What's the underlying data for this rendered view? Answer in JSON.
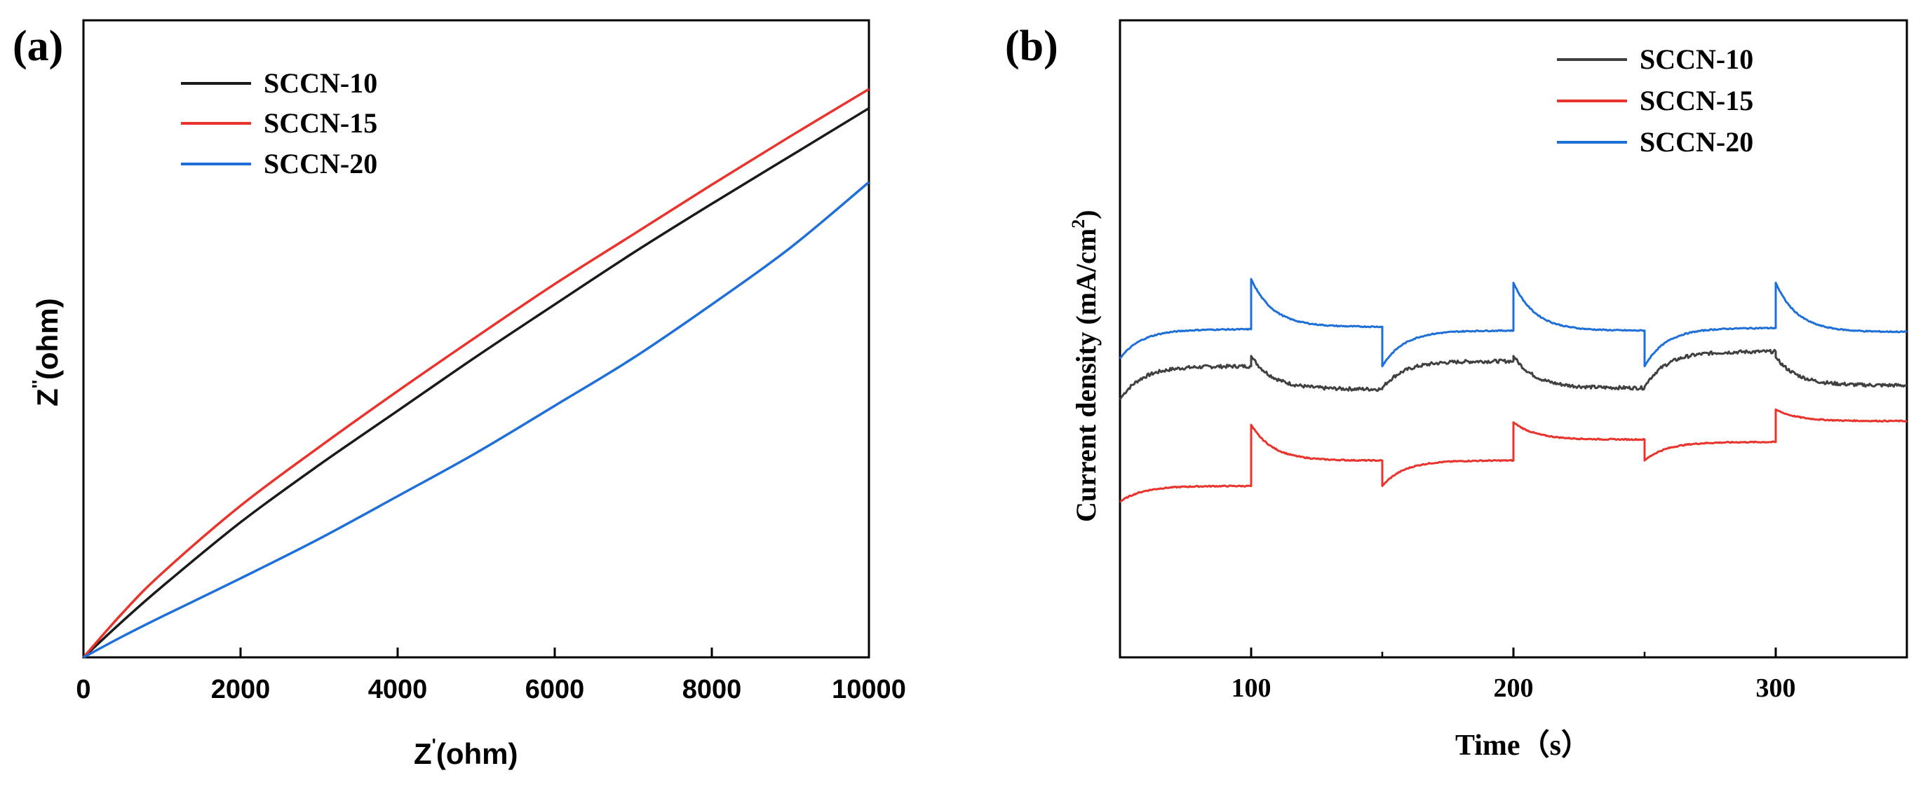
{
  "chart_data": [
    {
      "panel_label": "(a)",
      "type": "line",
      "xlabel_main": "Z",
      "xlabel_sup": "'",
      "xlabel_unit": "(ohm)",
      "ylabel_main": "Z",
      "ylabel_sup": "''",
      "ylabel_unit": "(ohm)",
      "xlim": [
        0,
        10000
      ],
      "ylim": [
        0,
        10000
      ],
      "xticks": [
        0,
        2000,
        4000,
        6000,
        8000,
        10000
      ],
      "xtick_labels": [
        "0",
        "2000",
        "4000",
        "6000",
        "8000",
        "10000"
      ],
      "legend_position": "top-left",
      "series": [
        {
          "name": "SCCN-10",
          "color": "#1a1a1a",
          "x": [
            0,
            500,
            1000,
            2000,
            3000,
            4000,
            5000,
            6000,
            7000,
            8000,
            9000,
            10000
          ],
          "y": [
            0,
            570,
            1110,
            2120,
            3020,
            3870,
            4720,
            5540,
            6350,
            7120,
            7870,
            8620
          ]
        },
        {
          "name": "SCCN-15",
          "color": "#e8342c",
          "x": [
            0,
            500,
            1000,
            2000,
            3000,
            4000,
            5000,
            6000,
            7000,
            8000,
            9000,
            10000
          ],
          "y": [
            0,
            700,
            1320,
            2380,
            3300,
            4180,
            5030,
            5860,
            6640,
            7420,
            8180,
            8920
          ]
        },
        {
          "name": "SCCN-20",
          "color": "#1f6fd8",
          "x": [
            0,
            500,
            1000,
            2000,
            3000,
            4000,
            5000,
            6000,
            7000,
            8000,
            9000,
            10000
          ],
          "y": [
            0,
            330,
            640,
            1240,
            1860,
            2530,
            3210,
            3950,
            4700,
            5540,
            6430,
            7460
          ]
        }
      ]
    },
    {
      "panel_label": "(b)",
      "type": "line",
      "xlabel_main": "Time",
      "xlabel_unit": "（s）",
      "ylabel_main": "Current density (mA/cm",
      "ylabel_sup": "2",
      "ylabel_end": ")",
      "xlim": [
        50,
        350
      ],
      "ylim": [
        0,
        100
      ],
      "xticks": [
        100,
        200,
        300
      ],
      "xtick_labels": [
        "100",
        "200",
        "300"
      ],
      "legend_position": "top-right",
      "series": [
        {
          "name": "SCCN-10",
          "color": "#404040",
          "on_times": [
            100,
            200,
            300
          ],
          "off_times": [
            150,
            250
          ],
          "segments": [
            {
              "t0": 50,
              "t1": 100,
              "start": 40.5,
              "end": 45.7,
              "spike": 0
            },
            {
              "t0": 100,
              "t1": 150,
              "start": 47.3,
              "end": 42.1,
              "spike": 0
            },
            {
              "t0": 150,
              "t1": 200,
              "start": 42.3,
              "end": 46.5,
              "spike": 1.5
            },
            {
              "t0": 200,
              "t1": 250,
              "start": 47.3,
              "end": 42.3,
              "spike": 0
            },
            {
              "t0": 250,
              "t1": 300,
              "start": 42.5,
              "end": 48.0,
              "spike": 0
            },
            {
              "t0": 300,
              "t1": 350,
              "start": 47.1,
              "end": 42.7,
              "spike": 0
            }
          ]
        },
        {
          "name": "SCCN-15",
          "color": "#e8342c",
          "on_times": [
            100,
            200,
            300
          ],
          "off_times": [
            150,
            250
          ],
          "segments": [
            {
              "t0": 50,
              "t1": 100,
              "start": 24.4,
              "end": 26.9,
              "spike": 0
            },
            {
              "t0": 100,
              "t1": 150,
              "start": 36.5,
              "end": 30.9,
              "spike": 0
            },
            {
              "t0": 150,
              "t1": 200,
              "start": 26.9,
              "end": 30.9,
              "spike": 0
            },
            {
              "t0": 200,
              "t1": 250,
              "start": 36.9,
              "end": 34.2,
              "spike": 0
            },
            {
              "t0": 250,
              "t1": 300,
              "start": 30.9,
              "end": 33.8,
              "spike": 0
            },
            {
              "t0": 300,
              "t1": 350,
              "start": 38.9,
              "end": 37.1,
              "spike": 0
            }
          ]
        },
        {
          "name": "SCCN-20",
          "color": "#1f6fd8",
          "on_times": [
            100,
            200,
            300
          ],
          "off_times": [
            150,
            250
          ],
          "segments": [
            {
              "t0": 50,
              "t1": 100,
              "start": 46.9,
              "end": 51.5,
              "spike": 0
            },
            {
              "t0": 100,
              "t1": 150,
              "start": 59.4,
              "end": 51.9,
              "spike": 0
            },
            {
              "t0": 150,
              "t1": 200,
              "start": 45.7,
              "end": 51.3,
              "spike": 0
            },
            {
              "t0": 200,
              "t1": 250,
              "start": 58.8,
              "end": 51.3,
              "spike": 0
            },
            {
              "t0": 250,
              "t1": 300,
              "start": 45.7,
              "end": 51.7,
              "spike": 0
            },
            {
              "t0": 300,
              "t1": 350,
              "start": 58.8,
              "end": 51.1,
              "spike": 0
            }
          ]
        }
      ]
    }
  ]
}
